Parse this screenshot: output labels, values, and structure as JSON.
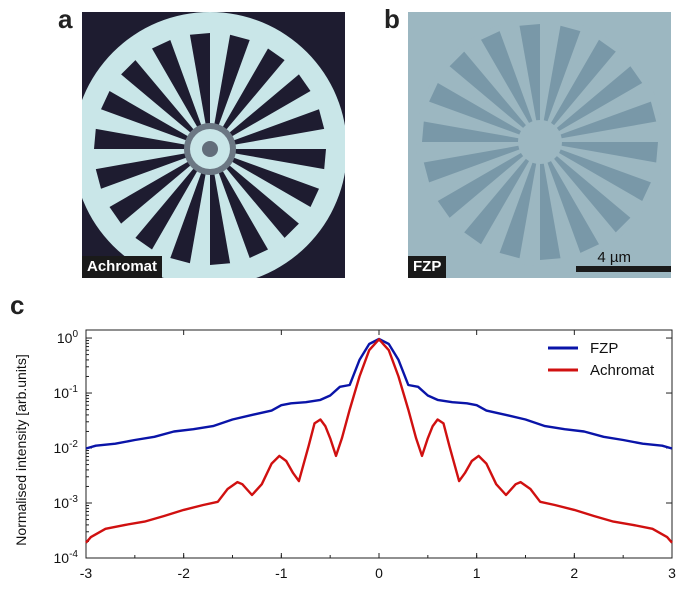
{
  "panels": {
    "a": {
      "letter": "a",
      "label": "Achromat"
    },
    "b": {
      "letter": "b",
      "label": "FZP",
      "scalebar_label": "4 µm"
    },
    "c": {
      "letter": "c"
    }
  },
  "colors": {
    "fzp": "#0a14a8",
    "achromat": "#d01010",
    "panel_a_bg": "#c9e6e8",
    "panel_a_dark": "#1e1c30",
    "panel_b_bg": "#9cb7c1",
    "panel_b_dark": "#6d8e9f"
  },
  "chart_data": {
    "type": "line",
    "ylabel": "Normalised intensity [arb.units]",
    "xlabel": "",
    "xlim": [
      -3,
      3
    ],
    "ylim": [
      0.0001,
      1.4
    ],
    "yscale": "log",
    "x_ticks": [
      "-3",
      "-2",
      "-1",
      "0",
      "1",
      "2",
      "3"
    ],
    "y_ticks": [
      {
        "mantissa": "10",
        "exp": "0",
        "value": 1
      },
      {
        "mantissa": "10",
        "exp": "-1",
        "value": 0.1
      },
      {
        "mantissa": "10",
        "exp": "-2",
        "value": 0.01
      },
      {
        "mantissa": "10",
        "exp": "-3",
        "value": 0.001
      },
      {
        "mantissa": "10",
        "exp": "-4",
        "value": 0.0001
      }
    ],
    "legend_position": "top-right",
    "series": [
      {
        "name": "FZP",
        "color": "#0a14a8",
        "points": [
          [
            0,
            0.96
          ],
          [
            0.1,
            0.78
          ],
          [
            0.2,
            0.4
          ],
          [
            0.3,
            0.14
          ],
          [
            0.4,
            0.13
          ],
          [
            0.5,
            0.09
          ],
          [
            0.6,
            0.075
          ],
          [
            0.75,
            0.068
          ],
          [
            0.9,
            0.065
          ],
          [
            1.0,
            0.06
          ],
          [
            1.1,
            0.048
          ],
          [
            1.3,
            0.04
          ],
          [
            1.5,
            0.033
          ],
          [
            1.7,
            0.025
          ],
          [
            1.9,
            0.022
          ],
          [
            2.1,
            0.02
          ],
          [
            2.3,
            0.016
          ],
          [
            2.5,
            0.014
          ],
          [
            2.7,
            0.012
          ],
          [
            2.9,
            0.011
          ],
          [
            3.0,
            0.0098
          ]
        ]
      },
      {
        "name": "Achromat",
        "color": "#d01010",
        "points": [
          [
            0,
            0.95
          ],
          [
            0.1,
            0.6
          ],
          [
            0.2,
            0.2
          ],
          [
            0.3,
            0.05
          ],
          [
            0.38,
            0.015
          ],
          [
            0.44,
            0.0072
          ],
          [
            0.5,
            0.015
          ],
          [
            0.55,
            0.025
          ],
          [
            0.6,
            0.033
          ],
          [
            0.66,
            0.028
          ],
          [
            0.72,
            0.011
          ],
          [
            0.82,
            0.0025
          ],
          [
            0.88,
            0.0035
          ],
          [
            0.95,
            0.0058
          ],
          [
            1.02,
            0.0072
          ],
          [
            1.1,
            0.0052
          ],
          [
            1.2,
            0.0022
          ],
          [
            1.3,
            0.0014
          ],
          [
            1.4,
            0.0022
          ],
          [
            1.45,
            0.0024
          ],
          [
            1.55,
            0.0018
          ],
          [
            1.65,
            0.00105
          ],
          [
            1.8,
            0.00092
          ],
          [
            2.0,
            0.00075
          ],
          [
            2.2,
            0.00058
          ],
          [
            2.4,
            0.00046
          ],
          [
            2.6,
            0.0004
          ],
          [
            2.8,
            0.00034
          ],
          [
            2.95,
            0.00024
          ],
          [
            3.0,
            0.00019
          ]
        ]
      }
    ]
  }
}
